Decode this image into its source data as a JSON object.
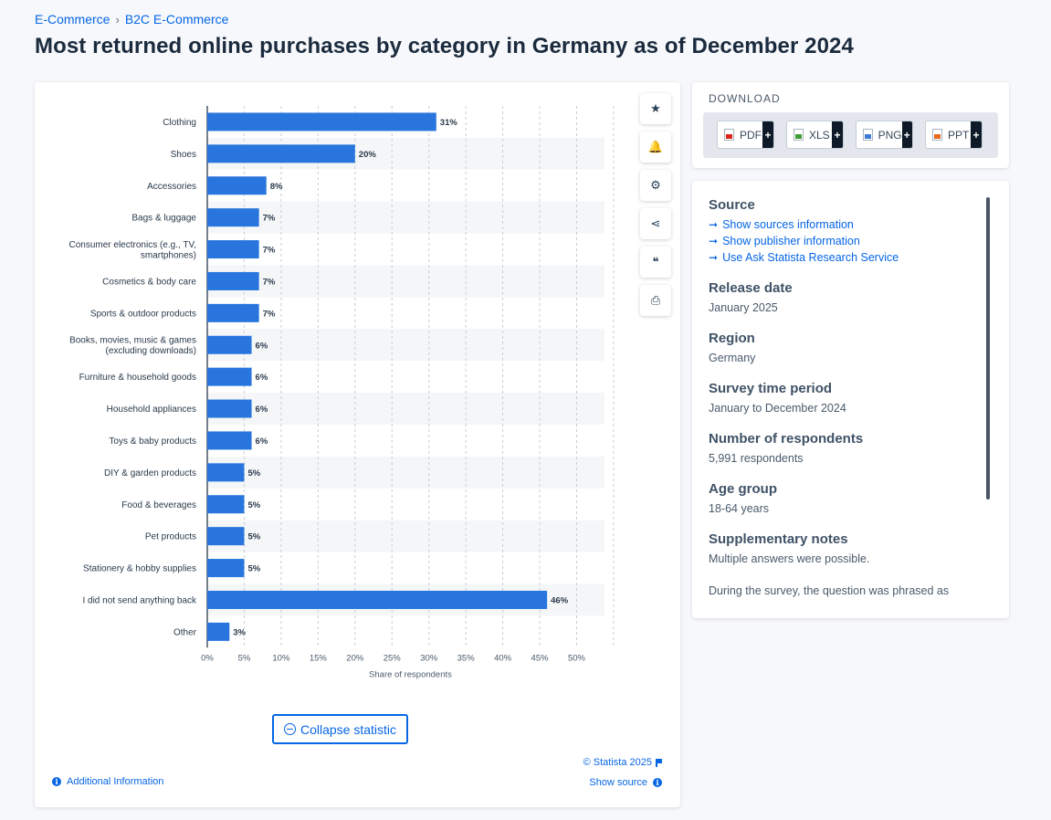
{
  "breadcrumb": {
    "items": [
      "E-Commerce",
      "B2C E-Commerce"
    ],
    "separator": "›"
  },
  "title": "Most returned online purchases by category in Germany as of December 2024",
  "chart_data": {
    "type": "bar",
    "orientation": "horizontal",
    "categories": [
      [
        "Clothing"
      ],
      [
        "Shoes"
      ],
      [
        "Accessories"
      ],
      [
        "Bags & luggage"
      ],
      [
        "Consumer electronics (e.g., TV,",
        "smartphones)"
      ],
      [
        "Cosmetics & body care"
      ],
      [
        "Sports & outdoor products"
      ],
      [
        "Books, movies, music & games",
        "(excluding downloads)"
      ],
      [
        "Furniture & household goods"
      ],
      [
        "Household appliances"
      ],
      [
        "Toys & baby products"
      ],
      [
        "DIY & garden products"
      ],
      [
        "Food & beverages"
      ],
      [
        "Pet products"
      ],
      [
        "Stationery & hobby supplies"
      ],
      [
        "I did not send anything back"
      ],
      [
        "Other"
      ]
    ],
    "values": [
      31,
      20,
      8,
      7,
      7,
      7,
      7,
      6,
      6,
      6,
      6,
      5,
      5,
      5,
      5,
      46,
      3
    ],
    "value_labels": [
      "31%",
      "20%",
      "8%",
      "7%",
      "7%",
      "7%",
      "7%",
      "6%",
      "6%",
      "6%",
      "6%",
      "5%",
      "5%",
      "5%",
      "5%",
      "46%",
      "3%"
    ],
    "xticks": [
      "0%",
      "5%",
      "10%",
      "15%",
      "20%",
      "25%",
      "30%",
      "35%",
      "40%",
      "45%",
      "50%"
    ],
    "xlim": [
      0,
      55
    ],
    "xlabel": "Share of respondents",
    "ylabel": "",
    "bar_color": "#2876dd",
    "grid": "vertical dashed"
  },
  "toolbar": {
    "buttons": [
      {
        "name": "favorite-button",
        "icon": "star-icon",
        "glyph": "★"
      },
      {
        "name": "notification-button",
        "icon": "bell-icon",
        "glyph": "🔔"
      },
      {
        "name": "settings-button",
        "icon": "gear-icon",
        "glyph": "⚙"
      },
      {
        "name": "share-button",
        "icon": "share-icon",
        "glyph": "⋖"
      },
      {
        "name": "cite-button",
        "icon": "quote-icon",
        "glyph": "❝"
      },
      {
        "name": "print-button",
        "icon": "printer-icon",
        "glyph": "⎙"
      }
    ]
  },
  "collapse_label": "Collapse statistic",
  "copyright": "© Statista 2025",
  "additional_info": "Additional Information",
  "show_source": "Show source",
  "download": {
    "heading": "DOWNLOAD",
    "buttons": [
      {
        "label": "PDF",
        "type": "pdf"
      },
      {
        "label": "XLS",
        "type": "xls"
      },
      {
        "label": "PNG",
        "type": "png"
      },
      {
        "label": "PPT",
        "type": "ppt"
      }
    ],
    "plus": "+"
  },
  "info": {
    "source_heading": "Source",
    "links": [
      "Show sources information",
      "Show publisher information",
      "Use Ask Statista Research Service"
    ],
    "release_heading": "Release date",
    "release_value": "January 2025",
    "region_heading": "Region",
    "region_value": "Germany",
    "survey_heading": "Survey time period",
    "survey_value": "January to December 2024",
    "respondents_heading": "Number of respondents",
    "respondents_value": "5,991 respondents",
    "age_heading": "Age group",
    "age_value": "18-64 years",
    "notes_heading": "Supplementary notes",
    "notes_value": "Multiple answers were possible.",
    "notes_extra": "During the survey, the question was phrased as follows: \"Which of these kinds of articles have you sent back after an online purchase in the past 12 months?\""
  }
}
